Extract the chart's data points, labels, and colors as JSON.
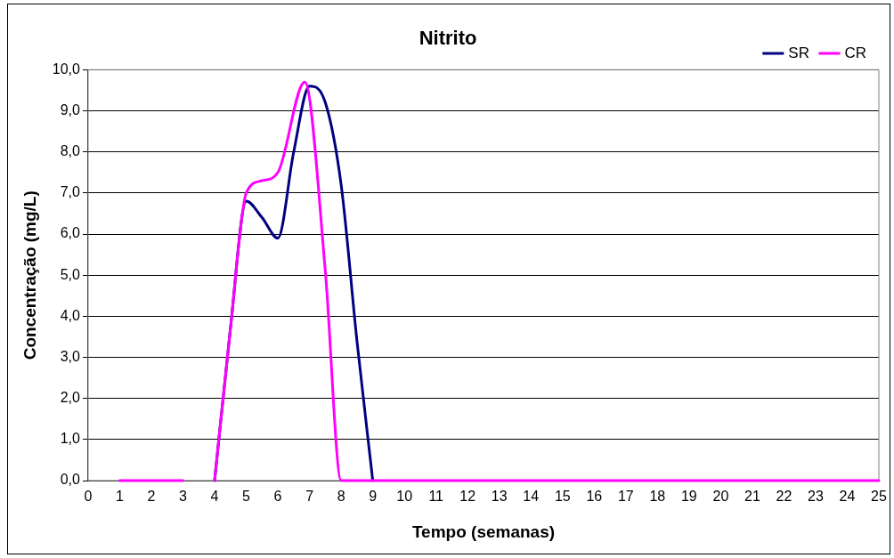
{
  "chart_data": {
    "type": "line",
    "title": "Nitrito",
    "xlabel": "Tempo (semanas)",
    "ylabel": "Concentração (mg/L)",
    "series": [
      {
        "name": "SR",
        "color": "#000080",
        "x": [
          4,
          4.5,
          5,
          5.5,
          6,
          6.5,
          7,
          7.5,
          8,
          8.5,
          9
        ],
        "values": [
          0,
          3.7,
          6.8,
          6.4,
          5.9,
          8.0,
          9.6,
          9.2,
          7.2,
          3.4,
          0
        ]
      },
      {
        "name": "CR",
        "color": "#ff00ff",
        "x": [
          1,
          2,
          3,
          3.5,
          4,
          4.5,
          5,
          5.5,
          6,
          6.85,
          7.5,
          8,
          9,
          10,
          11,
          12,
          13,
          14,
          15,
          16,
          17,
          18,
          19,
          20,
          21,
          22,
          23,
          24,
          25
        ],
        "values": [
          0,
          0,
          0,
          null,
          0,
          3.7,
          7.0,
          7.3,
          7.5,
          9.7,
          5.1,
          0,
          0,
          0,
          0,
          0,
          0,
          0,
          0,
          0,
          0,
          0,
          0,
          0,
          0,
          0,
          0,
          0,
          0
        ]
      }
    ],
    "xlim": [
      0,
      25
    ],
    "xticks": [
      0,
      1,
      2,
      3,
      4,
      5,
      6,
      7,
      8,
      9,
      10,
      11,
      12,
      13,
      14,
      15,
      16,
      17,
      18,
      19,
      20,
      21,
      22,
      23,
      24,
      25
    ],
    "ylim": [
      0,
      10
    ],
    "yticks": [
      {
        "value": 0,
        "label": "0,0"
      },
      {
        "value": 1,
        "label": "1,0"
      },
      {
        "value": 2,
        "label": "2,0"
      },
      {
        "value": 3,
        "label": "3,0"
      },
      {
        "value": 4,
        "label": "4,0"
      },
      {
        "value": 5,
        "label": "5,0"
      },
      {
        "value": 6,
        "label": "6,0"
      },
      {
        "value": 7,
        "label": "7,0"
      },
      {
        "value": 8,
        "label": "8,0"
      },
      {
        "value": 9,
        "label": "9,0"
      },
      {
        "value": 10,
        "label": "10,0"
      }
    ],
    "grid": "y",
    "legend": "top right",
    "marker": "none",
    "line_style": "solid"
  }
}
